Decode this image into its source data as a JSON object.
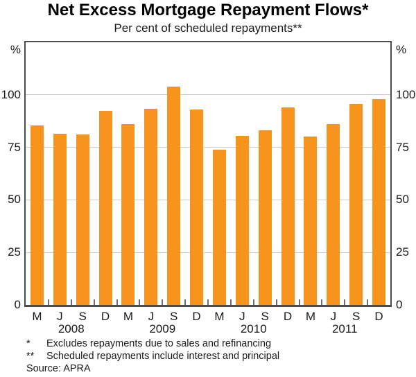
{
  "title": "Net Excess Mortgage Repayment Flows*",
  "subtitle": "Per cent of scheduled repayments**",
  "footnotes": [
    {
      "marker": "*",
      "text": "Excludes repayments due to sales and refinancing"
    },
    {
      "marker": "**",
      "text": "Scheduled repayments include interest and principal"
    }
  ],
  "source": "Source: APRA",
  "colors": {
    "bar": "#F7941E",
    "frame": "#4D4D4D",
    "gridline": "#CBCBCB",
    "tick": "#6E6E6E",
    "text": "#1A1A1A"
  },
  "chart_data": {
    "type": "bar",
    "title": "Net Excess Mortgage Repayment Flows*",
    "subtitle": "Per cent of scheduled repayments**",
    "categories": [
      "M",
      "J",
      "S",
      "D",
      "M",
      "J",
      "S",
      "D",
      "M",
      "J",
      "S",
      "D",
      "M",
      "J",
      "S",
      "D"
    ],
    "year_groups": [
      "2008",
      "2009",
      "2010",
      "2011"
    ],
    "values": [
      85.5,
      81.5,
      81,
      92.5,
      86,
      93.5,
      104,
      93,
      74,
      80.5,
      83,
      94,
      80,
      86,
      95.5,
      98
    ],
    "unit_label": "%",
    "yticks": [
      0,
      25,
      50,
      75,
      100
    ],
    "ylim": [
      0,
      125
    ],
    "grid": "horizontal",
    "legend": "none",
    "bar_color": "#F7941E",
    "source": "APRA"
  }
}
